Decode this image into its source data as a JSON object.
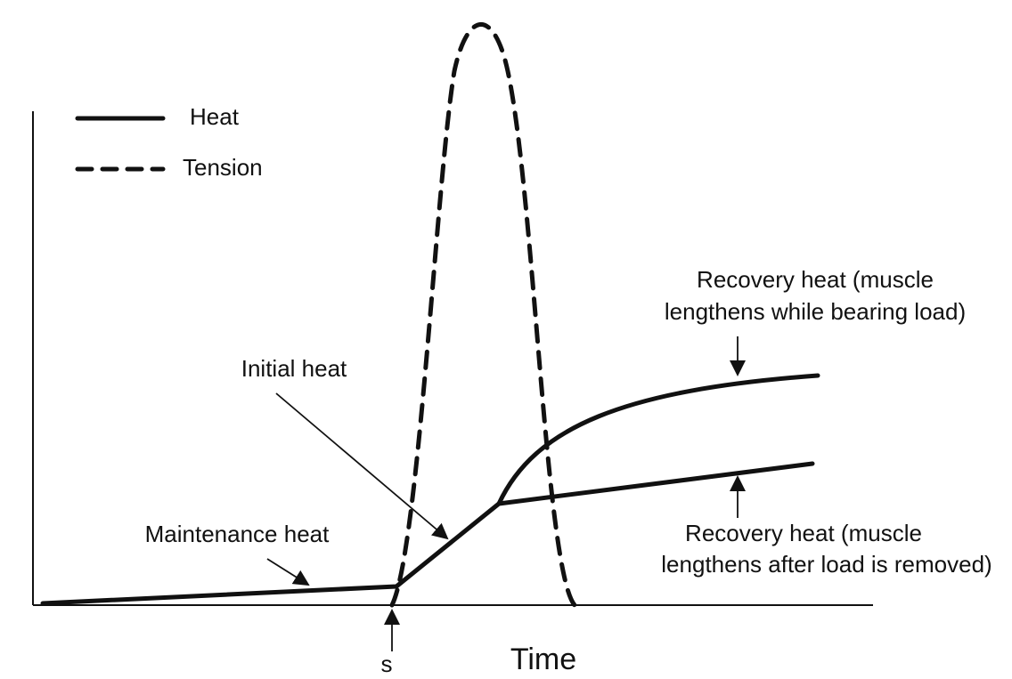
{
  "legend": {
    "items": [
      "Heat",
      "Tension"
    ]
  },
  "annotations": {
    "recovery_loaded": [
      "Recovery heat (muscle",
      "lengthens while bearing load)"
    ],
    "initial": "Initial heat",
    "maintenance": "Maintenance heat",
    "recovery_unloaded": [
      "Recovery heat (muscle",
      "lengthens after load is removed)"
    ],
    "stimulus": "s"
  },
  "x_axis": {
    "label": "Time"
  }
}
